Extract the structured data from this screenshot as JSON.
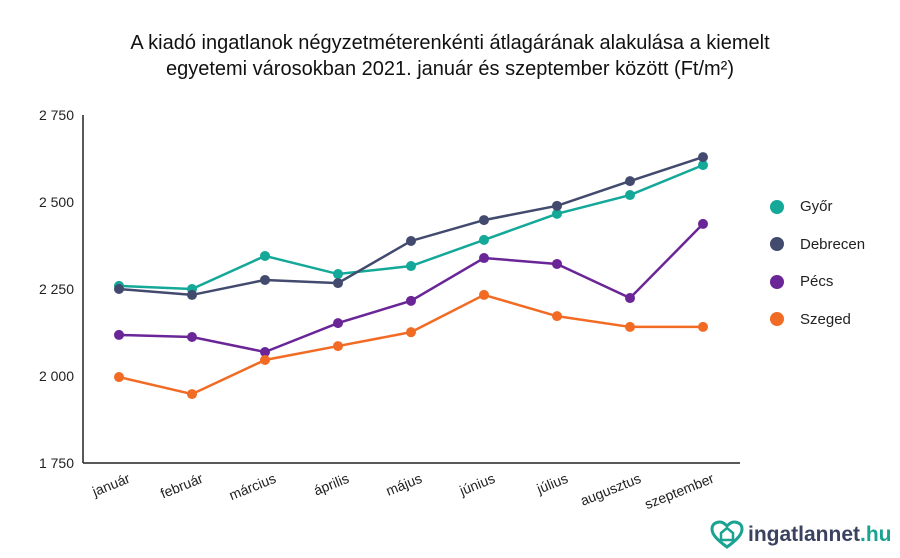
{
  "chart_data": {
    "type": "line",
    "title_line1": "A kiadó ingatlanok négyzetméterenkénti átlagárának alakulása a kiemelt",
    "title_line2": "egyetemi városokban 2021. január és szeptember között (Ft/m²)",
    "categories": [
      "január",
      "február",
      "március",
      "április",
      "május",
      "június",
      "július",
      "augusztus",
      "szeptember"
    ],
    "ylim": [
      1750,
      2750
    ],
    "yticks": [
      1750,
      2000,
      2250,
      2500,
      2750
    ],
    "ytick_labels": [
      "1 750",
      "2 000",
      "2 250",
      "2 500",
      "2 750"
    ],
    "legend_position": "right",
    "series": [
      {
        "name": "Győr",
        "color": "#14a899",
        "values": [
          2259,
          2250,
          2345,
          2293,
          2316,
          2391,
          2466,
          2520,
          2606
        ]
      },
      {
        "name": "Debrecen",
        "color": "#424a6e",
        "values": [
          2250,
          2233,
          2276,
          2267,
          2388,
          2448,
          2489,
          2560,
          2629
        ]
      },
      {
        "name": "Pécs",
        "color": "#6a2596",
        "values": [
          2118,
          2112,
          2069,
          2152,
          2216,
          2339,
          2322,
          2224,
          2437
        ]
      },
      {
        "name": "Szeged",
        "color": "#f26b24",
        "values": [
          1997,
          1948,
          2046,
          2086,
          2126,
          2233,
          2172,
          2141,
          2141
        ]
      }
    ]
  },
  "logo": {
    "name": "ingatlannet",
    "tld": ".hu"
  }
}
